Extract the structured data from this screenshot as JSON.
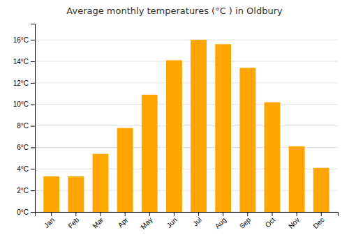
{
  "chart_data": {
    "type": "bar",
    "title": "Average monthly temperatures (°C ) in Oldbury",
    "categories": [
      "Jan",
      "Feb",
      "Mar",
      "Apr",
      "May",
      "Jun",
      "Jul",
      "Aug",
      "Sep",
      "Oct",
      "Nov",
      "Dec"
    ],
    "values": [
      3.3,
      3.3,
      5.4,
      7.8,
      10.9,
      14.1,
      16.0,
      15.6,
      13.4,
      10.2,
      6.1,
      4.1
    ],
    "color": "#FFA500",
    "ylim": [
      0,
      17.5
    ],
    "yticks": [
      {
        "value": 0,
        "label": "0°C"
      },
      {
        "value": 2,
        "label": "2°C"
      },
      {
        "value": 4,
        "label": "4°C"
      },
      {
        "value": 6,
        "label": "6°C"
      },
      {
        "value": 8,
        "label": "8°C"
      },
      {
        "value": 10,
        "label": "10°C"
      },
      {
        "value": 12,
        "label": "12°C"
      },
      {
        "value": 14,
        "label": "14°C"
      },
      {
        "value": 16,
        "label": "16°C"
      }
    ],
    "grid": true
  }
}
